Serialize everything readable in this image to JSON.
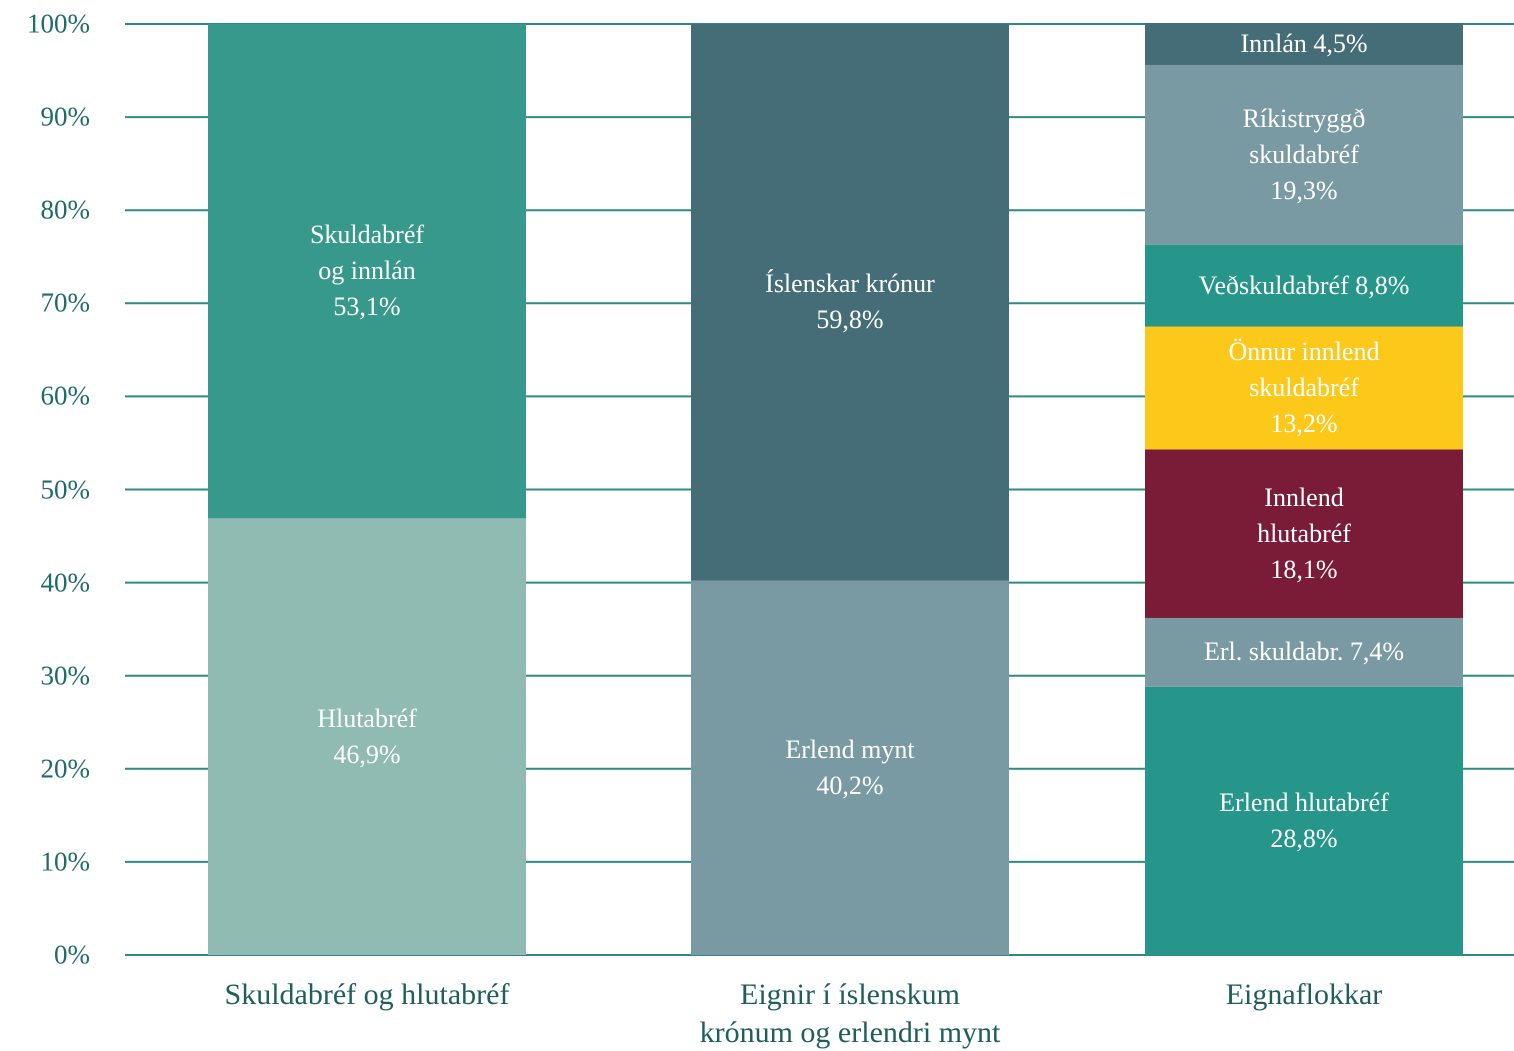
{
  "chart_data": {
    "type": "stacked_bar",
    "categories": [
      "Skuldabréf og hlutabréf",
      "Eignir í íslenskum krónum og erlendri mynt",
      "Eignaflokkar"
    ],
    "ylim": [
      0,
      100
    ],
    "yticks": [
      {
        "value": 0,
        "label": "0%"
      },
      {
        "value": 10,
        "label": "10%"
      },
      {
        "value": 20,
        "label": "20%"
      },
      {
        "value": 30,
        "label": "30%"
      },
      {
        "value": 40,
        "label": "40%"
      },
      {
        "value": 50,
        "label": "50%"
      },
      {
        "value": 60,
        "label": "60%"
      },
      {
        "value": 70,
        "label": "70%"
      },
      {
        "value": 80,
        "label": "80%"
      },
      {
        "value": 90,
        "label": "90%"
      },
      {
        "value": 100,
        "label": "100%"
      }
    ],
    "grid": true,
    "series": [
      {
        "name": "Hlutabréf",
        "color": "#8fbbb3",
        "values": [
          46.9,
          null,
          null
        ],
        "value_labels": [
          "46,9%",
          null,
          null
        ]
      },
      {
        "name": "Skuldabréf og innlán",
        "color": "#37998c",
        "values": [
          53.1,
          null,
          null
        ],
        "value_labels": [
          "53,1%",
          null,
          null
        ]
      },
      {
        "name": "Erlend mynt",
        "color": "#7a9aa3",
        "values": [
          null,
          40.2,
          null
        ],
        "value_labels": [
          null,
          "40,2%",
          null
        ]
      },
      {
        "name": "Íslenskar krónur",
        "color": "#456d77",
        "values": [
          null,
          59.8,
          null
        ],
        "value_labels": [
          null,
          "59,8%",
          null
        ]
      },
      {
        "name": "Erlend hlutabréf",
        "color": "#26968a",
        "values": [
          null,
          null,
          28.8
        ],
        "value_labels": [
          null,
          null,
          "28,8%"
        ]
      },
      {
        "name": "Erl. skuldabr.",
        "color": "#7a9aa3",
        "values": [
          null,
          null,
          7.4
        ],
        "value_labels": [
          null,
          null,
          "7,4%"
        ]
      },
      {
        "name": "Innlend hlutabréf",
        "color": "#7a1c37",
        "values": [
          null,
          null,
          18.1
        ],
        "value_labels": [
          null,
          null,
          "18,1%"
        ]
      },
      {
        "name": "Önnur innlend skuldabréf",
        "color": "#fcc81a",
        "values": [
          null,
          null,
          13.2
        ],
        "value_labels": [
          null,
          null,
          "13,2%"
        ]
      },
      {
        "name": "Veðskuldabréf",
        "color": "#26968a",
        "values": [
          null,
          null,
          8.8
        ],
        "value_labels": [
          null,
          null,
          "8,8%"
        ]
      },
      {
        "name": "Ríkistryggð skuldabréf",
        "color": "#7a9aa3",
        "values": [
          null,
          null,
          19.3
        ],
        "value_labels": [
          null,
          null,
          "19,3%"
        ]
      },
      {
        "name": "Innlán",
        "color": "#456d77",
        "values": [
          null,
          null,
          4.5
        ],
        "value_labels": [
          null,
          null,
          "4,5%"
        ]
      }
    ]
  }
}
